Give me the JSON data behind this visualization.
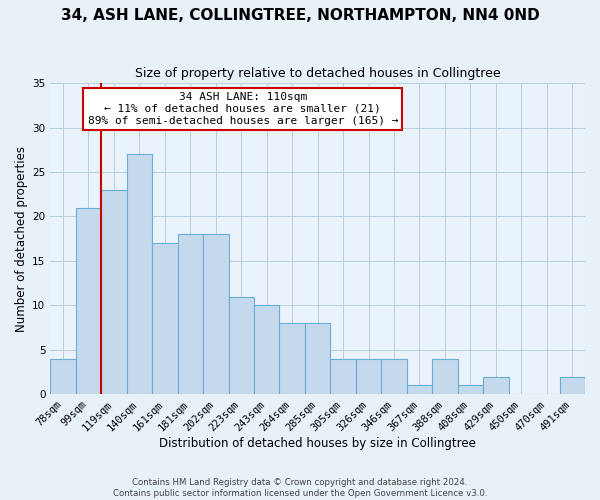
{
  "title": "34, ASH LANE, COLLINGTREE, NORTHAMPTON, NN4 0ND",
  "subtitle": "Size of property relative to detached houses in Collingtree",
  "xlabel": "Distribution of detached houses by size in Collingtree",
  "ylabel": "Number of detached properties",
  "bar_labels": [
    "78sqm",
    "99sqm",
    "119sqm",
    "140sqm",
    "161sqm",
    "181sqm",
    "202sqm",
    "223sqm",
    "243sqm",
    "264sqm",
    "285sqm",
    "305sqm",
    "326sqm",
    "346sqm",
    "367sqm",
    "388sqm",
    "408sqm",
    "429sqm",
    "450sqm",
    "470sqm",
    "491sqm"
  ],
  "bar_values": [
    4,
    21,
    23,
    27,
    17,
    18,
    18,
    11,
    10,
    8,
    8,
    4,
    4,
    4,
    1,
    4,
    1,
    2,
    0,
    0,
    2
  ],
  "bar_color": "#c5d9ed",
  "bar_edge_color": "#6aaed6",
  "ylim": [
    0,
    35
  ],
  "yticks": [
    0,
    5,
    10,
    15,
    20,
    25,
    30,
    35
  ],
  "annotation_title": "34 ASH LANE: 110sqm",
  "annotation_line1": "← 11% of detached houses are smaller (21)",
  "annotation_line2": "89% of semi-detached houses are larger (165) →",
  "annotation_box_color": "#ffffff",
  "annotation_box_edge": "#cc0000",
  "title_fontsize": 11,
  "subtitle_fontsize": 9,
  "axis_label_fontsize": 8.5,
  "tick_fontsize": 7.5,
  "annotation_fontsize": 8,
  "footer1": "Contains HM Land Registry data © Crown copyright and database right 2024.",
  "footer2": "Contains public sector information licensed under the Open Government Licence v3.0.",
  "background_color": "#e8f0f8",
  "plot_background_color": "#eaf2fb"
}
